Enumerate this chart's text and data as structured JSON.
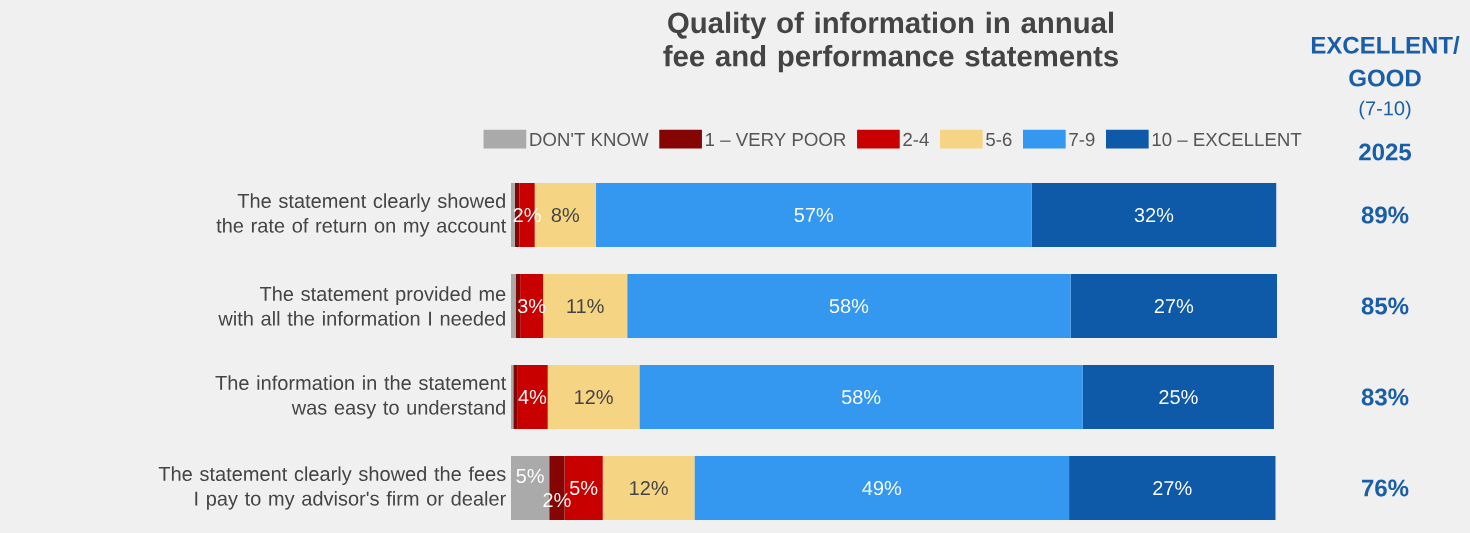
{
  "chart_data": {
    "type": "bar",
    "orientation": "horizontal",
    "stacked": true,
    "title": "Quality of information in annual fee and performance statements",
    "categories": [
      "The statement clearly showed the rate of return on my account",
      "The statement provided me with all the information I needed",
      "The information in the statement was easy to understand",
      "The statement clearly showed the fees I pay to my advisor's firm or dealer"
    ],
    "series": [
      {
        "name": "DON'T KNOW",
        "color": "#aaaaaa",
        "values": [
          0.5,
          0.6,
          0.3,
          5
        ],
        "value_labels": [
          null,
          null,
          null,
          "5%"
        ]
      },
      {
        "name": "1 – VERY POOR",
        "color": "#850505",
        "values": [
          0.6,
          0.6,
          0.5,
          2
        ],
        "value_labels": [
          null,
          null,
          null,
          "2%"
        ]
      },
      {
        "name": "2-4",
        "color": "#c80000",
        "values": [
          2,
          3,
          4,
          5
        ],
        "value_labels": [
          "2%",
          "3%",
          "4%",
          "5%"
        ]
      },
      {
        "name": "5-6",
        "color": "#f5d584",
        "values": [
          8,
          11,
          12,
          12
        ],
        "value_labels": [
          "8%",
          "11%",
          "12%",
          "12%"
        ]
      },
      {
        "name": "7-9",
        "color": "#3497f0",
        "values": [
          57,
          58,
          58,
          49
        ],
        "value_labels": [
          "57%",
          "58%",
          "58%",
          "49%"
        ]
      },
      {
        "name": "10 – EXCELLENT",
        "color": "#0f5aa8",
        "values": [
          32,
          27,
          25,
          27
        ],
        "value_labels": [
          "32%",
          "27%",
          "25%",
          "27%"
        ]
      }
    ],
    "legend": "top",
    "annotations": [
      "EXCELLENT/",
      "GOOD",
      "(7-10)",
      "2025",
      "89%",
      "85%",
      "83%",
      "76%"
    ]
  }
}
